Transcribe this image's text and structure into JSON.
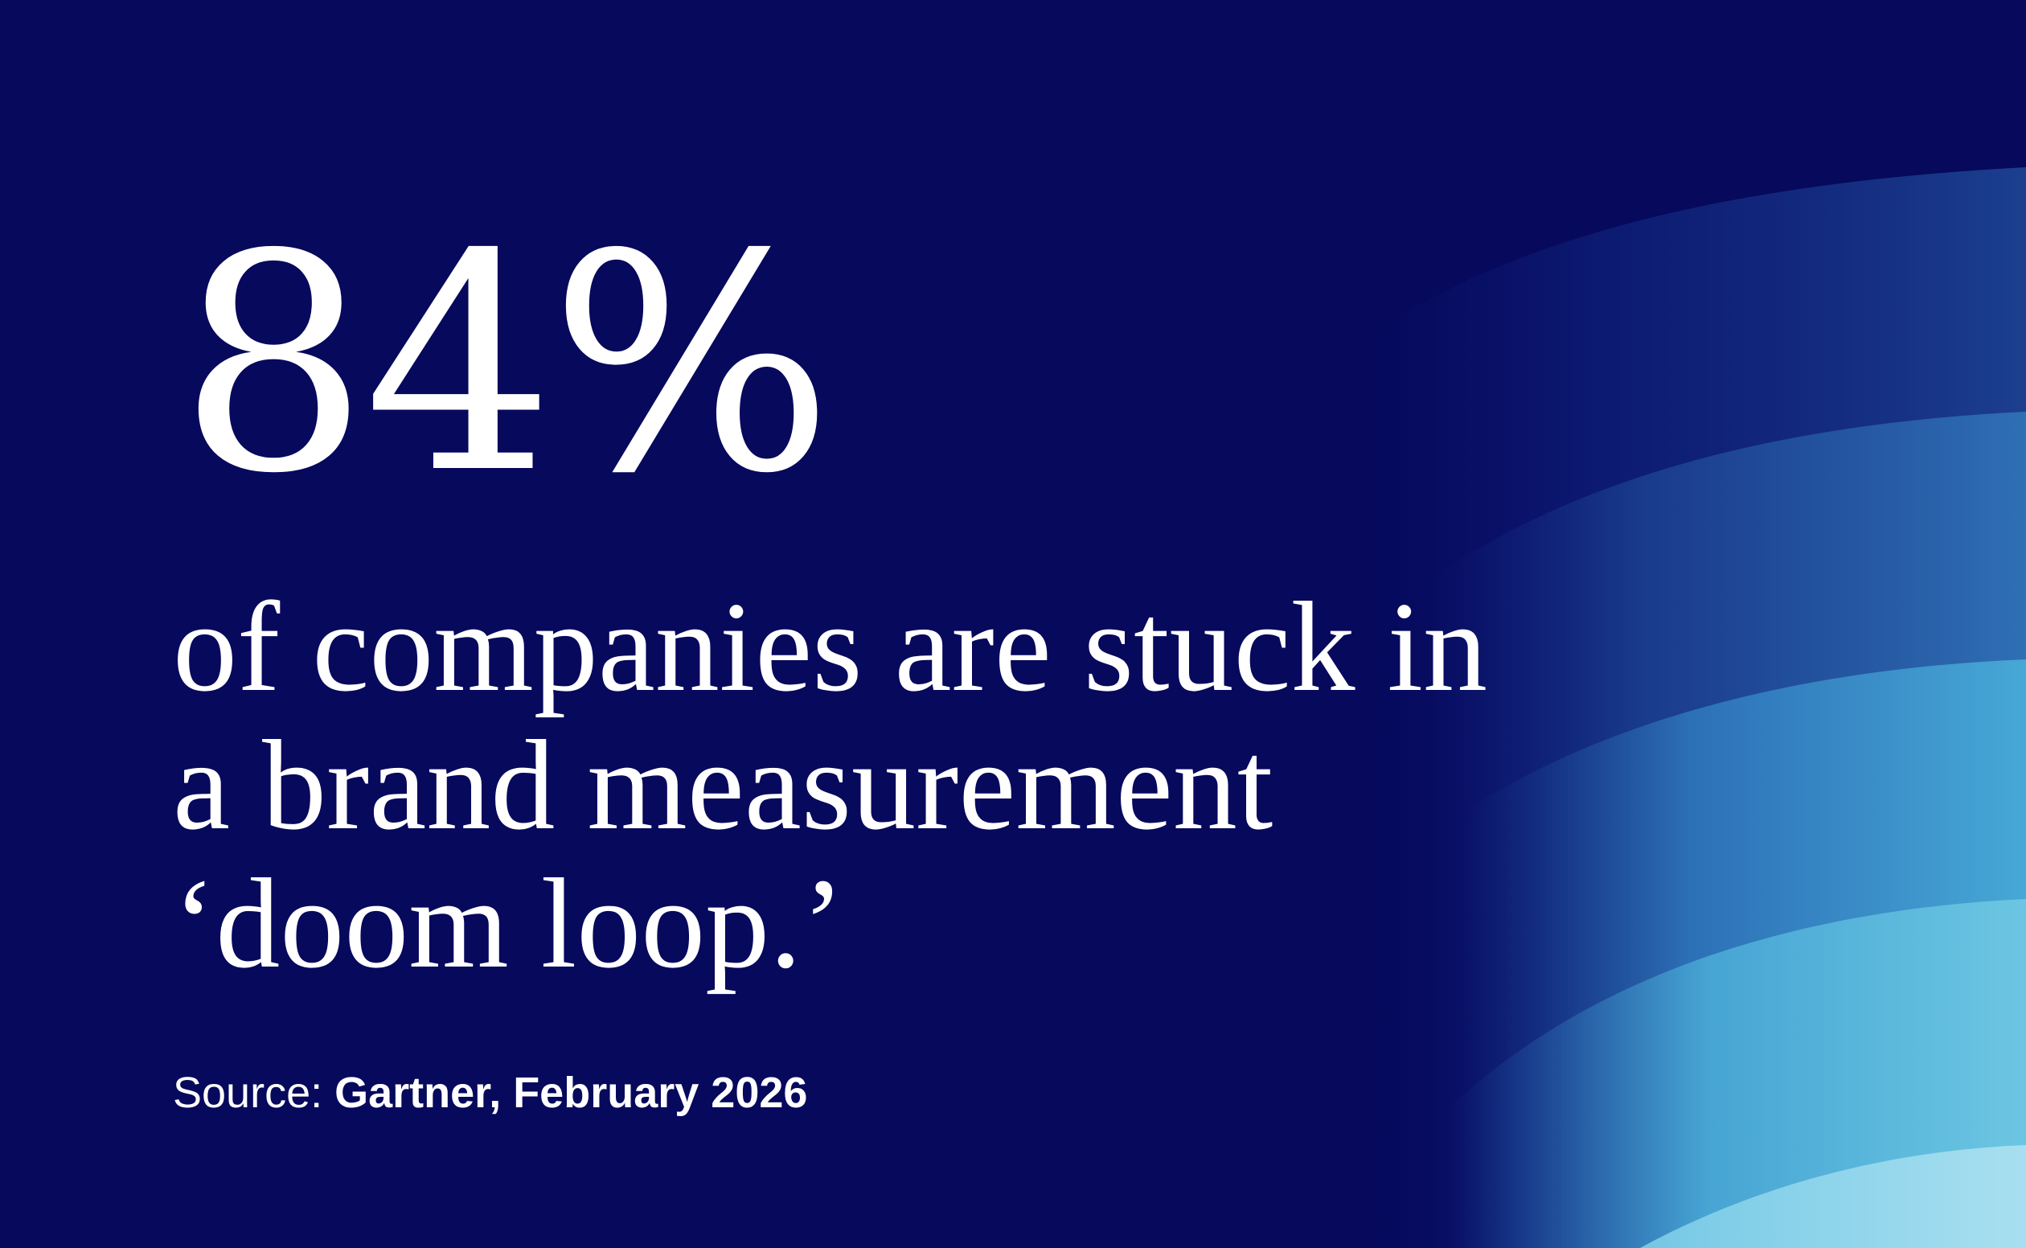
{
  "stat": {
    "value": "84%"
  },
  "statement": {
    "lines": [
      "of companies are stuck in",
      "a brand measurement",
      "‘doom loop.’"
    ]
  },
  "source": {
    "label": "Source: ",
    "text": "Gartner, February 2026"
  },
  "colors": {
    "background": "#06095c",
    "text": "#ffffff",
    "wave_light": "#a8dff0",
    "wave_mid": "#6cc6e2",
    "wave_blue": "#3f9fd0",
    "wave_dark": "#1a3f92"
  }
}
